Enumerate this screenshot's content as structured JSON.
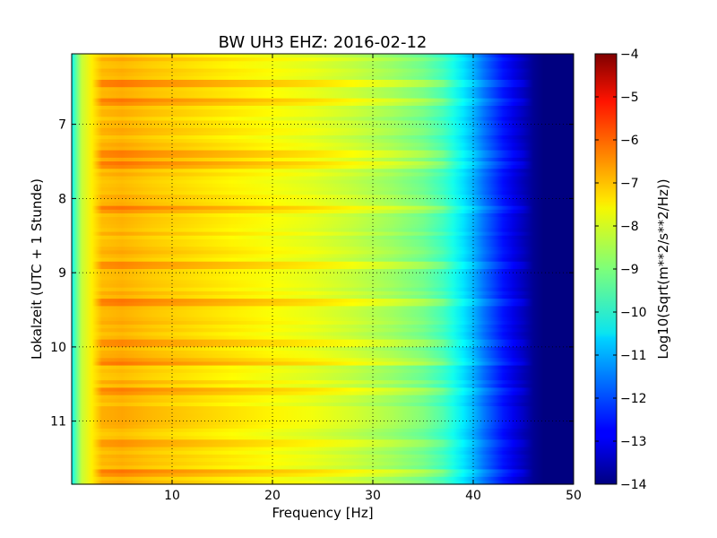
{
  "chart_data": {
    "type": "heatmap",
    "title": "BW UH3 EHZ: 2016-02-12",
    "xlabel": "Frequency [Hz]",
    "ylabel": "Lokalzeit (UTC + 1 Stunde)",
    "xlim": [
      0,
      50
    ],
    "ylim": [
      11.85,
      6.05
    ],
    "y_inverted": true,
    "x_ticks": [
      10,
      20,
      30,
      40,
      50
    ],
    "x_tick_labels": [
      "10",
      "20",
      "30",
      "40",
      "50"
    ],
    "y_ticks": [
      7,
      8,
      9,
      10,
      11
    ],
    "y_tick_labels": [
      "7",
      "8",
      "9",
      "10",
      "11"
    ],
    "grid": true,
    "grid_style": "dotted",
    "colormap": "jet",
    "colorbar": {
      "label": "Log10(Sqrt(m**2/s**2/Hz))",
      "range": [
        -14,
        -4
      ],
      "ticks": [
        -4,
        -5,
        -6,
        -7,
        -8,
        -9,
        -10,
        -11,
        -12,
        -13,
        -14
      ],
      "tick_labels": [
        "−4",
        "−5",
        "−6",
        "−7",
        "−8",
        "−9",
        "−10",
        "−11",
        "−12",
        "−13",
        "−14"
      ]
    },
    "spectrum_profile": {
      "freq_hz": [
        0,
        0.5,
        1,
        2,
        3,
        5,
        8,
        12,
        16,
        20,
        24,
        28,
        32,
        35,
        37,
        38,
        39,
        40,
        41,
        42,
        43,
        44,
        45,
        46,
        47,
        50
      ],
      "log_amplitude": [
        -10.2,
        -9.2,
        -8.3,
        -7.6,
        -7.1,
        -7.0,
        -7.2,
        -7.4,
        -7.6,
        -7.8,
        -8.0,
        -8.3,
        -8.7,
        -9.1,
        -9.6,
        -10.0,
        -10.5,
        -11.0,
        -11.6,
        -12.1,
        -12.6,
        -13.0,
        -13.4,
        -13.8,
        -14.0,
        -14.0
      ]
    },
    "bright_time_bands": [
      6.45,
      6.7,
      7.4,
      7.55,
      8.15,
      8.9,
      9.4,
      9.95,
      10.2,
      10.6,
      11.3,
      11.7
    ]
  }
}
